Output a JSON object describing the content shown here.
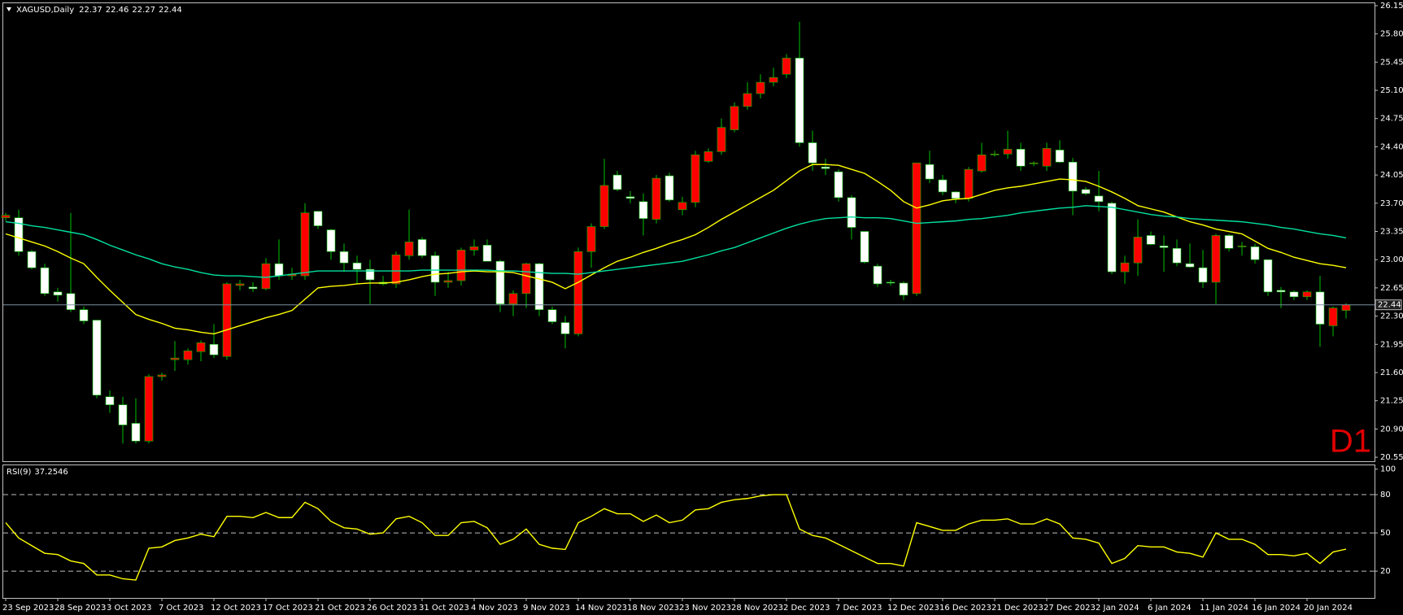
{
  "chart_data": [
    {
      "type": "candlestick",
      "title": "XAGUSD,Daily",
      "timeframe_label": "D1",
      "categories": [
        "23 Sep 2023",
        null,
        null,
        null,
        "28 Sep 2023",
        null,
        null,
        null,
        "3 Oct 2023",
        null,
        null,
        null,
        "7 Oct 2023",
        null,
        null,
        null,
        "12 Oct 2023",
        null,
        null,
        null,
        "17 Oct 2023",
        null,
        null,
        null,
        "21 Oct 2023",
        null,
        null,
        null,
        "26 Oct 2023",
        null,
        null,
        null,
        "31 Oct 2023",
        null,
        null,
        null,
        "4 Nov 2023",
        null,
        null,
        null,
        "9 Nov 2023",
        null,
        null,
        null,
        "14 Nov 2023",
        null,
        null,
        null,
        "18 Nov 2023",
        null,
        null,
        null,
        "23 Nov 2023",
        null,
        null,
        null,
        "28 Nov 2023",
        null,
        null,
        null,
        "2 Dec 2023",
        null,
        null,
        null,
        "7 Dec 2023",
        null,
        null,
        null,
        "12 Dec 2023",
        null,
        null,
        null,
        "16 Dec 2023",
        null,
        null,
        null,
        "21 Dec 2023",
        null,
        null,
        null,
        "27 Dec 2023",
        null,
        null,
        null,
        "2 Jan 2024",
        null,
        null,
        null,
        "6 Jan 2024",
        null,
        null,
        null,
        "11 Jan 2024",
        null,
        null,
        null,
        "16 Jan 2024",
        null,
        null,
        null,
        "20 Jan 2024",
        null,
        null,
        null
      ],
      "open": [
        23.52,
        23.52,
        23.1,
        22.9,
        22.6,
        22.58,
        22.38,
        22.25,
        21.3,
        21.2,
        20.97,
        20.75,
        21.55,
        21.76,
        21.76,
        21.86,
        21.95,
        21.8,
        22.68,
        22.66,
        22.64,
        22.95,
        22.8,
        22.8,
        23.6,
        23.37,
        23.1,
        22.96,
        22.88,
        22.72,
        22.7,
        23.05,
        23.25,
        23.05,
        22.72,
        22.74,
        23.12,
        23.18,
        22.98,
        22.45,
        22.58,
        22.95,
        22.38,
        22.22,
        22.08,
        23.1,
        23.41,
        24.05,
        23.78,
        23.72,
        23.5,
        24.04,
        23.62,
        23.71,
        24.22,
        24.34,
        24.61,
        24.9,
        25.06,
        25.2,
        25.3,
        25.5,
        24.45,
        24.15,
        24.09,
        23.77,
        23.35,
        22.92,
        22.72,
        22.71,
        22.58,
        24.18,
        23.99,
        23.84,
        23.76,
        24.1,
        24.3,
        24.31,
        24.37,
        24.19,
        24.16,
        24.36,
        24.21,
        23.87,
        23.79,
        23.7,
        22.85,
        22.96,
        23.3,
        23.17,
        23.14,
        22.95,
        22.9,
        22.72,
        23.3,
        23.16,
        23.16,
        23.0,
        22.62,
        22.6,
        22.54,
        22.6,
        22.18,
        22.37
      ],
      "high": [
        23.58,
        23.62,
        23.12,
        22.95,
        22.65,
        23.58,
        22.42,
        22.25,
        21.38,
        21.3,
        21.28,
        21.58,
        21.6,
        21.99,
        21.9,
        22.0,
        22.2,
        22.72,
        22.75,
        22.72,
        23.02,
        23.25,
        22.9,
        23.7,
        23.6,
        23.38,
        23.2,
        23.05,
        23.0,
        22.8,
        23.1,
        23.62,
        23.28,
        23.1,
        22.85,
        23.15,
        23.25,
        23.25,
        23.0,
        22.62,
        22.96,
        22.96,
        22.42,
        22.3,
        23.15,
        23.45,
        24.25,
        24.1,
        23.85,
        23.82,
        24.05,
        24.08,
        23.78,
        24.35,
        24.38,
        24.75,
        24.95,
        25.2,
        25.3,
        25.38,
        25.55,
        25.95,
        24.6,
        24.25,
        24.12,
        23.8,
        23.35,
        22.95,
        22.75,
        22.73,
        24.2,
        24.35,
        24.05,
        23.85,
        24.15,
        24.45,
        24.35,
        24.6,
        24.45,
        24.22,
        24.45,
        24.48,
        24.26,
        23.9,
        24.1,
        23.72,
        23.05,
        23.5,
        23.35,
        23.3,
        23.25,
        23.2,
        23.12,
        23.32,
        23.32,
        23.22,
        23.2,
        23.0,
        22.66,
        22.62,
        22.62,
        22.8,
        22.42,
        22.46
      ],
      "low": [
        23.48,
        23.05,
        22.88,
        22.55,
        22.48,
        22.35,
        22.2,
        21.28,
        21.1,
        20.72,
        20.72,
        20.72,
        21.5,
        21.62,
        21.7,
        21.74,
        21.78,
        21.76,
        22.62,
        22.6,
        22.62,
        22.75,
        22.75,
        22.75,
        23.38,
        23.0,
        22.85,
        22.7,
        22.45,
        22.68,
        22.65,
        23.0,
        23.02,
        22.55,
        22.65,
        22.68,
        23.05,
        22.98,
        22.35,
        22.3,
        22.4,
        22.3,
        22.2,
        21.9,
        22.05,
        22.9,
        23.38,
        23.85,
        23.7,
        23.3,
        23.45,
        23.72,
        23.55,
        23.65,
        24.2,
        24.3,
        24.58,
        24.86,
        25.0,
        25.15,
        25.25,
        24.4,
        24.1,
        24.05,
        23.72,
        23.25,
        22.95,
        22.66,
        22.68,
        22.5,
        22.55,
        23.95,
        23.8,
        23.7,
        23.72,
        24.08,
        24.28,
        24.25,
        24.1,
        24.16,
        24.1,
        24.2,
        23.55,
        23.8,
        23.6,
        22.82,
        22.7,
        22.8,
        23.18,
        22.85,
        22.92,
        22.9,
        22.65,
        22.45,
        23.1,
        23.05,
        22.95,
        22.55,
        22.4,
        22.5,
        22.5,
        21.92,
        22.05,
        22.27
      ],
      "close": [
        23.55,
        23.1,
        22.9,
        22.58,
        22.56,
        22.38,
        22.24,
        21.32,
        21.2,
        20.95,
        20.75,
        21.55,
        21.57,
        21.78,
        21.87,
        21.97,
        21.82,
        22.7,
        22.7,
        22.64,
        22.95,
        22.8,
        22.82,
        23.58,
        23.42,
        23.1,
        22.96,
        22.88,
        22.75,
        22.7,
        23.06,
        23.22,
        23.05,
        22.72,
        22.74,
        23.12,
        23.16,
        22.98,
        22.45,
        22.58,
        22.95,
        22.38,
        22.23,
        22.08,
        23.1,
        23.41,
        23.92,
        23.87,
        23.76,
        23.51,
        24.01,
        23.74,
        23.71,
        24.3,
        24.34,
        24.64,
        24.9,
        25.06,
        25.2,
        25.26,
        25.5,
        24.45,
        24.2,
        24.13,
        23.77,
        23.4,
        22.97,
        22.7,
        22.71,
        22.56,
        24.2,
        24.0,
        23.84,
        23.76,
        24.12,
        24.3,
        24.31,
        24.37,
        24.16,
        24.2,
        24.38,
        24.21,
        23.85,
        23.82,
        23.72,
        22.85,
        22.96,
        23.28,
        23.19,
        23.15,
        22.96,
        22.91,
        22.72,
        23.3,
        23.14,
        23.17,
        23.0,
        22.6,
        22.6,
        22.54,
        22.6,
        22.2,
        22.4,
        22.44
      ],
      "lines": [
        {
          "color": "#ffff00",
          "values": [
            23.32,
            23.27,
            23.22,
            23.17,
            23.1,
            23.02,
            22.95,
            22.78,
            22.62,
            22.47,
            22.32,
            22.26,
            22.21,
            22.15,
            22.13,
            22.1,
            22.08,
            22.13,
            22.18,
            22.23,
            22.28,
            22.32,
            22.37,
            22.51,
            22.65,
            22.67,
            22.68,
            22.7,
            22.71,
            22.71,
            22.72,
            22.75,
            22.79,
            22.82,
            22.83,
            22.85,
            22.86,
            22.85,
            22.85,
            22.84,
            22.8,
            22.76,
            22.72,
            22.64,
            22.72,
            22.81,
            22.9,
            22.98,
            23.03,
            23.09,
            23.14,
            23.2,
            23.25,
            23.31,
            23.4,
            23.5,
            23.59,
            23.68,
            23.77,
            23.86,
            23.98,
            24.1,
            24.18,
            24.18,
            24.17,
            24.12,
            24.07,
            23.97,
            23.86,
            23.72,
            23.64,
            23.68,
            23.73,
            23.75,
            23.76,
            23.81,
            23.86,
            23.89,
            23.91,
            23.94,
            23.97,
            24.0,
            23.99,
            23.97,
            23.91,
            23.84,
            23.76,
            23.67,
            23.63,
            23.59,
            23.53,
            23.47,
            23.43,
            23.38,
            23.35,
            23.32,
            23.23,
            23.14,
            23.09,
            23.03,
            22.99,
            22.95,
            22.93,
            22.9
          ]
        },
        {
          "color": "#00e0a0",
          "values": [
            23.47,
            23.45,
            23.42,
            23.4,
            23.37,
            23.34,
            23.31,
            23.25,
            23.18,
            23.12,
            23.06,
            23.01,
            22.95,
            22.91,
            22.88,
            22.84,
            22.81,
            22.8,
            22.8,
            22.79,
            22.78,
            22.8,
            22.82,
            22.84,
            22.86,
            22.86,
            22.86,
            22.86,
            22.86,
            22.86,
            22.86,
            22.86,
            22.87,
            22.87,
            22.87,
            22.87,
            22.87,
            22.87,
            22.86,
            22.86,
            22.85,
            22.84,
            22.83,
            22.83,
            22.82,
            22.84,
            22.86,
            22.88,
            22.9,
            22.92,
            22.94,
            22.96,
            22.98,
            23.02,
            23.06,
            23.11,
            23.15,
            23.21,
            23.27,
            23.33,
            23.39,
            23.44,
            23.48,
            23.51,
            23.52,
            23.53,
            23.52,
            23.52,
            23.51,
            23.48,
            23.45,
            23.46,
            23.47,
            23.48,
            23.5,
            23.51,
            23.53,
            23.55,
            23.58,
            23.6,
            23.62,
            23.64,
            23.65,
            23.67,
            23.66,
            23.65,
            23.62,
            23.59,
            23.56,
            23.54,
            23.53,
            23.51,
            23.5,
            23.49,
            23.48,
            23.47,
            23.45,
            23.43,
            23.4,
            23.38,
            23.35,
            23.32,
            23.3,
            23.27
          ]
        }
      ],
      "up_color": "#ff0000",
      "down_color": "#ffffff",
      "wick_color": "#00c000",
      "price_line_color": "#7a8fa0",
      "ylim": [
        20.5,
        26.18
      ],
      "yticks": [
        26.15,
        {
          "value": 25.8,
          "label": "25.80"
        },
        25.45,
        {
          "value": 25.1,
          "label": "25.10"
        },
        24.75,
        {
          "value": 24.4,
          "label": "24.40"
        },
        24.05,
        {
          "value": 23.7,
          "label": "23.70"
        },
        23.35,
        {
          "value": 23,
          "label": "23.00"
        },
        22.65,
        {
          "value": 22.3,
          "label": "22.30"
        },
        21.95,
        {
          "value": 21.6,
          "label": "21.60"
        },
        21.25,
        {
          "value": 20.9,
          "label": "20.90"
        },
        20.55
      ]
    },
    {
      "type": "line",
      "title": "RSI(9)",
      "color": "#ffff00",
      "values": [
        58,
        46,
        40,
        34,
        33,
        28,
        26,
        17,
        17,
        14,
        13,
        38,
        39,
        44,
        46,
        49,
        47,
        63,
        63,
        62,
        66,
        62,
        62,
        74,
        69,
        59,
        54,
        53,
        49,
        50,
        61,
        63,
        58,
        48,
        48,
        58,
        59,
        54,
        41,
        45,
        53,
        41,
        38,
        37,
        58,
        63,
        69,
        65,
        65,
        59,
        64,
        58,
        60,
        68,
        69,
        74,
        76,
        77,
        79,
        80,
        80,
        53,
        48,
        46,
        41,
        36,
        31,
        26,
        26,
        24,
        58,
        55,
        52,
        52,
        57,
        60,
        60,
        61,
        57,
        57,
        61,
        57,
        46,
        45,
        42,
        26,
        30,
        40,
        39,
        39,
        35,
        34,
        31,
        50,
        45,
        45,
        41,
        33,
        33,
        32,
        34,
        26,
        35,
        37.2546
      ],
      "levels": [
        80,
        50,
        20
      ],
      "ylim": [
        -1,
        103
      ],
      "yticks": [
        100,
        80,
        50,
        20
      ]
    }
  ]
}
